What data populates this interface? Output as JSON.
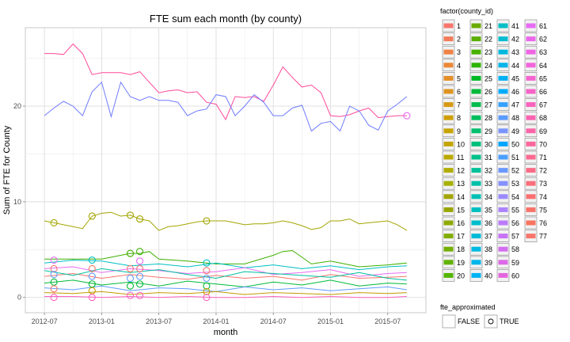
{
  "chart_data": {
    "type": "line",
    "title": "FTE sum each month (by county)",
    "xlabel": "month",
    "ylabel": "Sum of FTE for County",
    "x_ticks": [
      "2012-07",
      "2013-01",
      "2013-07",
      "2014-01",
      "2014-07",
      "2015-01",
      "2015-07"
    ],
    "y_ticks": [
      0,
      10,
      20
    ],
    "xlim": [
      "2012-05",
      "2015-11"
    ],
    "ylim": [
      -1.6,
      28.2
    ],
    "grid": true,
    "legend_position": "right",
    "color_legend": {
      "title": "factor(county_id)",
      "items": [
        {
          "label": "1",
          "color": "#F8766D"
        },
        {
          "label": "2",
          "color": "#F47C5A"
        },
        {
          "label": "3",
          "color": "#F08244"
        },
        {
          "label": "4",
          "color": "#EC8836"
        },
        {
          "label": "5",
          "color": "#E48E2A"
        },
        {
          "label": "6",
          "color": "#DE9420"
        },
        {
          "label": "7",
          "color": "#D69A12"
        },
        {
          "label": "8",
          "color": "#CE9F07"
        },
        {
          "label": "9",
          "color": "#C5A400"
        },
        {
          "label": "10",
          "color": "#C4A500"
        },
        {
          "label": "11",
          "color": "#BBA900"
        },
        {
          "label": "12",
          "color": "#B1AD00"
        },
        {
          "label": "13",
          "color": "#A6B100"
        },
        {
          "label": "14",
          "color": "#A3A500"
        },
        {
          "label": "15",
          "color": "#9AA600"
        },
        {
          "label": "16",
          "color": "#8EAA00"
        },
        {
          "label": "17",
          "color": "#81AD00"
        },
        {
          "label": "18",
          "color": "#72B000"
        },
        {
          "label": "19",
          "color": "#62B300"
        },
        {
          "label": "20",
          "color": "#52B500"
        },
        {
          "label": "21",
          "color": "#6BAA00"
        },
        {
          "label": "22",
          "color": "#5CAE00"
        },
        {
          "label": "23",
          "color": "#49B200"
        },
        {
          "label": "24",
          "color": "#2DB500"
        },
        {
          "label": "25",
          "color": "#00B825"
        },
        {
          "label": "26",
          "color": "#00BA38"
        },
        {
          "label": "27",
          "color": "#00BC4C"
        },
        {
          "label": "28",
          "color": "#00BE5E"
        },
        {
          "label": "29",
          "color": "#00BF6E"
        },
        {
          "label": "30",
          "color": "#00C07D"
        },
        {
          "label": "31",
          "color": "#00C18C"
        },
        {
          "label": "32",
          "color": "#00C19A"
        },
        {
          "label": "33",
          "color": "#00C1A8"
        },
        {
          "label": "34",
          "color": "#00C0B5"
        },
        {
          "label": "35",
          "color": "#00BFC1"
        },
        {
          "label": "36",
          "color": "#00BDCD"
        },
        {
          "label": "37",
          "color": "#00BBD8"
        },
        {
          "label": "38",
          "color": "#00BAE2"
        },
        {
          "label": "39",
          "color": "#00B6EB"
        },
        {
          "label": "40",
          "color": "#00B2F3"
        },
        {
          "label": "41",
          "color": "#00BFC4"
        },
        {
          "label": "42",
          "color": "#00BCD1"
        },
        {
          "label": "43",
          "color": "#00B8DD"
        },
        {
          "label": "44",
          "color": "#00B4E8"
        },
        {
          "label": "45",
          "color": "#00B0F2"
        },
        {
          "label": "46",
          "color": "#00ABFB"
        },
        {
          "label": "47",
          "color": "#35A2FF"
        },
        {
          "label": "48",
          "color": "#5C9BFF"
        },
        {
          "label": "49",
          "color": "#7A94FF"
        },
        {
          "label": "50",
          "color": "#00A5FF"
        },
        {
          "label": "51",
          "color": "#4B9FFF"
        },
        {
          "label": "52",
          "color": "#6B98FF"
        },
        {
          "label": "53",
          "color": "#8491FF"
        },
        {
          "label": "54",
          "color": "#9A8AFF"
        },
        {
          "label": "55",
          "color": "#AC82FF"
        },
        {
          "label": "56",
          "color": "#BC7AFB"
        },
        {
          "label": "57",
          "color": "#C873F6"
        },
        {
          "label": "58",
          "color": "#D46EF0"
        },
        {
          "label": "59",
          "color": "#DC69E8"
        },
        {
          "label": "60",
          "color": "#E466DF"
        },
        {
          "label": "61",
          "color": "#E76BF3"
        },
        {
          "label": "62",
          "color": "#EB68EC"
        },
        {
          "label": "63",
          "color": "#EF66E4"
        },
        {
          "label": "64",
          "color": "#F265DB"
        },
        {
          "label": "65",
          "color": "#F564D1"
        },
        {
          "label": "66",
          "color": "#F763C7"
        },
        {
          "label": "67",
          "color": "#F963BD"
        },
        {
          "label": "68",
          "color": "#FA64B2"
        },
        {
          "label": "69",
          "color": "#FB65A7"
        },
        {
          "label": "70",
          "color": "#FC679C"
        },
        {
          "label": "71",
          "color": "#FC6991"
        },
        {
          "label": "72",
          "color": "#FC6B86"
        },
        {
          "label": "73",
          "color": "#FB6E7B"
        },
        {
          "label": "74",
          "color": "#FA7071"
        },
        {
          "label": "75",
          "color": "#F97267"
        },
        {
          "label": "76",
          "color": "#F8745E"
        },
        {
          "label": "77",
          "color": "#F8766D"
        }
      ]
    },
    "shape_legend": {
      "title": "fte_approximated",
      "items": [
        {
          "label": "FALSE",
          "shape": "none"
        },
        {
          "label": "TRUE",
          "shape": "circle"
        }
      ]
    },
    "series": [
      {
        "color": "#FF4A9A",
        "x": [
          "2012-07",
          "2012-08",
          "2012-09",
          "2012-10",
          "2012-11",
          "2012-12",
          "2013-01",
          "2013-02",
          "2013-03",
          "2013-04",
          "2013-05",
          "2013-06",
          "2013-07",
          "2013-08",
          "2013-09",
          "2013-10",
          "2013-11",
          "2013-12",
          "2014-01",
          "2014-02",
          "2014-03",
          "2014-04",
          "2014-05",
          "2014-06",
          "2014-07",
          "2014-08",
          "2014-09",
          "2014-10",
          "2014-11",
          "2014-12",
          "2015-01",
          "2015-02",
          "2015-03",
          "2015-04",
          "2015-05",
          "2015-06",
          "2015-07",
          "2015-08",
          "2015-09"
        ],
        "y": [
          25.5,
          25.5,
          25.4,
          26.5,
          25.5,
          23.3,
          23.5,
          23.5,
          23.5,
          23.3,
          23.6,
          22.5,
          21.4,
          21.6,
          21.7,
          21.4,
          21.5,
          20.4,
          20.2,
          18.6,
          21.0,
          20.9,
          21.0,
          20.5,
          22.2,
          24.1,
          23.0,
          22.0,
          22.2,
          21.4,
          19.0,
          18.9,
          19.1,
          19.5,
          19.8,
          18.8,
          18.9,
          19.0,
          19.0
        ]
      },
      {
        "color": "#6F7BFF",
        "x": [
          "2012-07",
          "2012-08",
          "2012-09",
          "2012-10",
          "2012-11",
          "2012-12",
          "2013-01",
          "2013-02",
          "2013-03",
          "2013-04",
          "2013-05",
          "2013-06",
          "2013-07",
          "2013-08",
          "2013-09",
          "2013-10",
          "2013-11",
          "2013-12",
          "2014-01",
          "2014-02",
          "2014-03",
          "2014-04",
          "2014-05",
          "2014-06",
          "2014-07",
          "2014-08",
          "2014-09",
          "2014-10",
          "2014-11",
          "2014-12",
          "2015-01",
          "2015-02",
          "2015-03",
          "2015-04",
          "2015-05",
          "2015-06",
          "2015-07",
          "2015-08",
          "2015-09"
        ],
        "y": [
          19.0,
          19.8,
          20.5,
          20.0,
          19.0,
          21.5,
          22.5,
          18.9,
          22.5,
          21.0,
          20.6,
          21.0,
          20.6,
          20.6,
          20.4,
          19.0,
          19.5,
          19.7,
          21.2,
          21.0,
          19.0,
          20.0,
          21.2,
          20.4,
          19.0,
          19.0,
          19.8,
          20.1,
          17.4,
          18.2,
          18.4,
          17.4,
          20.0,
          19.5,
          18.0,
          17.5,
          19.5,
          20.2,
          21.0
        ]
      },
      {
        "color": "#A3A500",
        "x": [
          "2012-07",
          "2012-08",
          "2012-09",
          "2012-10",
          "2012-11",
          "2012-12",
          "2013-01",
          "2013-02",
          "2013-03",
          "2013-04",
          "2013-05",
          "2013-06",
          "2013-07",
          "2013-08",
          "2013-09",
          "2013-10",
          "2013-11",
          "2013-12",
          "2014-01",
          "2014-02",
          "2014-03",
          "2014-04",
          "2014-05",
          "2014-06",
          "2014-07",
          "2014-08",
          "2014-09",
          "2014-10",
          "2014-11",
          "2014-12",
          "2015-01",
          "2015-02",
          "2015-03",
          "2015-04",
          "2015-05",
          "2015-06",
          "2015-07",
          "2015-08",
          "2015-09"
        ],
        "y": [
          8.0,
          7.8,
          7.6,
          7.4,
          7.2,
          8.5,
          8.8,
          8.9,
          8.5,
          8.6,
          8.2,
          8.0,
          7.0,
          7.4,
          7.5,
          7.7,
          7.9,
          8.0,
          8.0,
          8.0,
          7.8,
          7.6,
          7.7,
          7.7,
          7.8,
          8.0,
          7.8,
          7.5,
          7.1,
          7.3,
          8.0,
          8.0,
          8.2,
          7.7,
          7.8,
          7.9,
          8.0,
          7.6,
          7.0
        ]
      },
      {
        "color": "#3DB000",
        "x": [
          "2012-07",
          "2012-10",
          "2013-01",
          "2013-04",
          "2013-05",
          "2013-06",
          "2013-07",
          "2013-10",
          "2014-01",
          "2014-04",
          "2014-07",
          "2014-08",
          "2014-09",
          "2014-10",
          "2014-11",
          "2015-01",
          "2015-04",
          "2015-07",
          "2015-09"
        ],
        "y": [
          4.0,
          4.0,
          4.0,
          4.6,
          4.6,
          4.8,
          4.0,
          3.8,
          3.5,
          3.5,
          4.4,
          4.8,
          4.9,
          4.2,
          3.5,
          3.8,
          3.2,
          3.4,
          3.6
        ]
      },
      {
        "color": "#00BFC4",
        "x": [
          "2012-07",
          "2012-10",
          "2013-01",
          "2013-04",
          "2013-07",
          "2013-10",
          "2014-01",
          "2014-04",
          "2014-07",
          "2014-10",
          "2015-01",
          "2015-04",
          "2015-07",
          "2015-09"
        ],
        "y": [
          3.6,
          3.9,
          3.8,
          3.3,
          3.5,
          3.2,
          3.6,
          3.1,
          3.4,
          3.0,
          3.3,
          2.9,
          3.2,
          3.3
        ]
      },
      {
        "color": "#E76BF3",
        "x": [
          "2012-07",
          "2012-10",
          "2013-01",
          "2013-04",
          "2013-07",
          "2013-10",
          "2014-01",
          "2014-04",
          "2014-07",
          "2014-10",
          "2015-01",
          "2015-04",
          "2015-07",
          "2015-09"
        ],
        "y": [
          3.0,
          3.2,
          2.6,
          3.0,
          2.8,
          2.5,
          2.7,
          3.1,
          2.4,
          2.6,
          2.9,
          2.2,
          2.5,
          2.6
        ]
      },
      {
        "color": "#F8766D",
        "x": [
          "2012-07",
          "2012-10",
          "2013-01",
          "2013-04",
          "2013-07",
          "2013-10",
          "2014-01",
          "2014-04",
          "2014-07",
          "2014-10",
          "2015-01",
          "2015-04",
          "2015-07",
          "2015-09"
        ],
        "y": [
          2.2,
          2.5,
          2.0,
          2.4,
          2.1,
          1.9,
          2.3,
          2.0,
          2.2,
          1.8,
          2.4,
          2.0,
          2.1,
          2.2
        ]
      },
      {
        "color": "#00BA38",
        "x": [
          "2012-07",
          "2012-10",
          "2013-01",
          "2013-04",
          "2013-07",
          "2013-10",
          "2014-01",
          "2014-04",
          "2014-07",
          "2014-10",
          "2015-01",
          "2015-04",
          "2015-07",
          "2015-09"
        ],
        "y": [
          1.5,
          1.8,
          1.3,
          1.6,
          1.2,
          1.7,
          1.4,
          1.1,
          1.6,
          1.3,
          1.8,
          1.2,
          1.5,
          1.4
        ]
      },
      {
        "color": "#619CFF",
        "x": [
          "2012-07",
          "2012-10",
          "2013-01",
          "2013-04",
          "2013-07",
          "2013-10",
          "2014-01",
          "2014-04",
          "2014-07",
          "2014-10",
          "2015-01",
          "2015-04",
          "2015-07",
          "2015-09"
        ],
        "y": [
          1.0,
          0.8,
          1.2,
          0.7,
          1.0,
          0.9,
          0.6,
          1.1,
          0.8,
          1.0,
          0.7,
          0.9,
          1.1,
          0.8
        ]
      },
      {
        "color": "#C49A00",
        "x": [
          "2012-07",
          "2012-10",
          "2013-01",
          "2013-04",
          "2013-07",
          "2013-10",
          "2014-01",
          "2014-04",
          "2014-07",
          "2014-10",
          "2015-01",
          "2015-04",
          "2015-07",
          "2015-09"
        ],
        "y": [
          0.5,
          0.4,
          0.6,
          0.3,
          0.5,
          0.4,
          0.6,
          0.3,
          0.5,
          0.4,
          0.3,
          0.5,
          0.4,
          0.5
        ]
      },
      {
        "color": "#FF61C3",
        "x": [
          "2012-07",
          "2012-10",
          "2013-01",
          "2013-04",
          "2013-07",
          "2013-10",
          "2014-01",
          "2014-04",
          "2014-07",
          "2014-10",
          "2015-01",
          "2015-04",
          "2015-07",
          "2015-09"
        ],
        "y": [
          0.1,
          0.1,
          0.0,
          0.1,
          0.0,
          0.1,
          0.0,
          0.0,
          0.1,
          0.0,
          0.1,
          0.0,
          0.0,
          0.1
        ]
      },
      {
        "color": "#00C19F",
        "x": [
          "2012-07",
          "2012-10",
          "2013-01",
          "2013-04",
          "2013-07",
          "2013-10",
          "2014-01",
          "2014-04",
          "2014-07",
          "2014-10",
          "2015-01",
          "2015-04",
          "2015-07",
          "2015-09"
        ],
        "y": [
          2.8,
          2.3,
          3.0,
          2.6,
          2.9,
          2.4,
          2.0,
          2.7,
          2.5,
          2.3,
          2.1,
          2.6,
          2.0,
          1.8
        ]
      }
    ],
    "points": [
      {
        "color": "#A3A500",
        "x": "2012-08",
        "y": 7.8
      },
      {
        "color": "#A3A500",
        "x": "2012-12",
        "y": 8.5
      },
      {
        "color": "#A3A500",
        "x": "2013-04",
        "y": 8.6
      },
      {
        "color": "#A3A500",
        "x": "2013-05",
        "y": 8.2
      },
      {
        "color": "#A3A500",
        "x": "2013-12",
        "y": 8.0
      },
      {
        "color": "#3DB000",
        "x": "2013-04",
        "y": 4.6
      },
      {
        "color": "#3DB000",
        "x": "2013-05",
        "y": 4.8
      },
      {
        "color": "#E76BF3",
        "x": "2015-09",
        "y": 19.0
      },
      {
        "color": "#E76BF3",
        "x": "2012-08",
        "y": 3.9
      },
      {
        "color": "#00BFC4",
        "x": "2012-12",
        "y": 3.9
      },
      {
        "color": "#E76BF3",
        "x": "2013-05",
        "y": 3.8
      },
      {
        "color": "#00BFC4",
        "x": "2013-12",
        "y": 3.6
      },
      {
        "color": "#F8766D",
        "x": "2012-08",
        "y": 3.0
      },
      {
        "color": "#619CFF",
        "x": "2012-08",
        "y": 2.4
      },
      {
        "color": "#00BA38",
        "x": "2012-08",
        "y": 1.6
      },
      {
        "color": "#F8766D",
        "x": "2012-08",
        "y": 0.9
      },
      {
        "color": "#FF61C3",
        "x": "2012-08",
        "y": 0.0
      },
      {
        "color": "#F8766D",
        "x": "2012-12",
        "y": 3.0
      },
      {
        "color": "#619CFF",
        "x": "2012-12",
        "y": 2.2
      },
      {
        "color": "#00BA38",
        "x": "2012-12",
        "y": 1.4
      },
      {
        "color": "#C49A00",
        "x": "2012-12",
        "y": 0.7
      },
      {
        "color": "#FF61C3",
        "x": "2012-12",
        "y": 0.0
      },
      {
        "color": "#F8766D",
        "x": "2013-04",
        "y": 3.0
      },
      {
        "color": "#619CFF",
        "x": "2013-04",
        "y": 2.0
      },
      {
        "color": "#00BA38",
        "x": "2013-04",
        "y": 1.2
      },
      {
        "color": "#FF61C3",
        "x": "2013-04",
        "y": 0.2
      },
      {
        "color": "#F8766D",
        "x": "2013-05",
        "y": 3.0
      },
      {
        "color": "#619CFF",
        "x": "2013-05",
        "y": 2.2
      },
      {
        "color": "#00BA38",
        "x": "2013-05",
        "y": 1.4
      },
      {
        "color": "#FF61C3",
        "x": "2013-05",
        "y": 0.2
      },
      {
        "color": "#F8766D",
        "x": "2013-12",
        "y": 2.8
      },
      {
        "color": "#619CFF",
        "x": "2013-12",
        "y": 2.0
      },
      {
        "color": "#00BA38",
        "x": "2013-12",
        "y": 1.2
      },
      {
        "color": "#C49A00",
        "x": "2013-12",
        "y": 0.6
      },
      {
        "color": "#FF61C3",
        "x": "2013-12",
        "y": 0.0
      }
    ]
  }
}
